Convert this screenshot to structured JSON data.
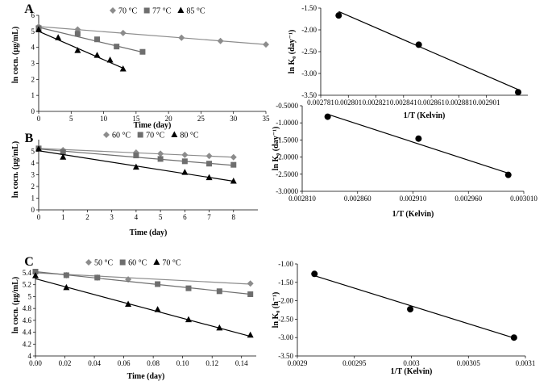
{
  "figure_title": "",
  "legend_units": {
    "A": "°C",
    "B": "°C",
    "C": "°C"
  },
  "chart_data": [
    {
      "id": "A",
      "panel_label": "A",
      "type": "scatter",
      "fit": "linear",
      "xlabel": "Time (day)",
      "ylabel": "ln cocn. (µg/mL)",
      "xlim": [
        0,
        35
      ],
      "ylim": [
        0,
        6
      ],
      "xticks": [
        0,
        5,
        10,
        15,
        20,
        25,
        30,
        35
      ],
      "yticks": [
        0,
        1,
        2,
        3,
        4,
        5,
        6
      ],
      "xtick_labels": [
        "0",
        "5",
        "10",
        "15",
        "20",
        "25",
        "30",
        "35"
      ],
      "ytick_labels": [
        "0",
        "1",
        "2",
        "3",
        "4",
        "5",
        "6"
      ],
      "legend_position": "top",
      "series": [
        {
          "name": "70 °C",
          "marker": "diamond",
          "color": "#8c8c8c",
          "x": [
            0,
            6,
            13,
            22,
            28,
            35
          ],
          "y": [
            5.3,
            5.12,
            4.9,
            4.6,
            4.4,
            4.18
          ],
          "fit_line": [
            [
              0,
              5.3
            ],
            [
              35,
              4.18
            ]
          ]
        },
        {
          "name": "77 °C",
          "marker": "square",
          "color": "#6e6e6e",
          "x": [
            0,
            6,
            9,
            12,
            16
          ],
          "y": [
            5.2,
            4.85,
            4.5,
            4.05,
            3.72
          ],
          "fit_line": [
            [
              0,
              5.25
            ],
            [
              16,
              3.7
            ]
          ]
        },
        {
          "name": "85 °C",
          "marker": "triangle",
          "color": "#000000",
          "x": [
            0,
            3,
            6,
            9,
            11,
            13
          ],
          "y": [
            5.1,
            4.6,
            3.8,
            3.5,
            3.2,
            2.65
          ],
          "fit_line": [
            [
              0,
              5.0
            ],
            [
              13,
              2.7
            ]
          ]
        }
      ]
    },
    {
      "id": "A2",
      "panel_label": "",
      "type": "scatter",
      "fit": "linear",
      "xlabel": "1/T (Kelvin)",
      "ylabel": "ln K₀ (day⁻¹)",
      "xlim": [
        0.002781,
        0.002931
      ],
      "ylim": [
        -3.5,
        -1.5
      ],
      "xticks": [
        0.002781,
        0.002801,
        0.002821,
        0.002841,
        0.002861,
        0.002881,
        0.002901
      ],
      "yticks": [
        -3.5,
        -3.0,
        -2.5,
        -2.0,
        -1.5
      ],
      "xtick_labels": [
        "0.002781",
        "0.002801",
        "0.002821",
        "0.002841",
        "0.002861",
        "0.002881",
        "0.002901"
      ],
      "ytick_labels": [
        "-3.50",
        "-3.00",
        "-2.50",
        "-2.00",
        "-1.50"
      ],
      "series": [
        {
          "name": "",
          "marker": "circle",
          "color": "#000000",
          "x": [
            0.002794,
            0.002852,
            0.002924
          ],
          "y": [
            -1.67,
            -2.34,
            -3.43
          ],
          "fit_line": [
            [
              0.002794,
              -1.58
            ],
            [
              0.002924,
              -3.37
            ]
          ]
        }
      ]
    },
    {
      "id": "B",
      "panel_label": "B",
      "type": "scatter",
      "fit": "linear",
      "xlabel": "Time (day)",
      "ylabel": "ln cocn. (µg/mL)",
      "xlim": [
        0,
        9
      ],
      "ylim": [
        0,
        6
      ],
      "xticks": [
        0,
        1,
        2,
        3,
        4,
        5,
        6,
        7,
        8
      ],
      "yticks": [
        0,
        1,
        2,
        3,
        4,
        5
      ],
      "xtick_labels": [
        "0",
        "1",
        "2",
        "3",
        "4",
        "5",
        "6",
        "7",
        "8"
      ],
      "ytick_labels": [
        "0",
        "1",
        "2",
        "3",
        "4",
        "5"
      ],
      "legend_position": "top",
      "series": [
        {
          "name": "60 °C",
          "marker": "diamond",
          "color": "#8c8c8c",
          "x": [
            0,
            1,
            4,
            5,
            6,
            7,
            8
          ],
          "y": [
            5.25,
            5.1,
            4.9,
            4.8,
            4.7,
            4.6,
            4.5
          ],
          "fit_line": [
            [
              0,
              5.25
            ],
            [
              8,
              4.5
            ]
          ]
        },
        {
          "name": "70 °C",
          "marker": "square",
          "color": "#6e6e6e",
          "x": [
            0,
            1,
            4,
            5,
            6,
            7,
            8
          ],
          "y": [
            5.25,
            4.95,
            4.65,
            4.35,
            4.15,
            3.95,
            3.85
          ],
          "fit_line": [
            [
              0,
              5.2
            ],
            [
              8,
              3.8
            ]
          ]
        },
        {
          "name": "80 °C",
          "marker": "triangle",
          "color": "#000000",
          "x": [
            0,
            1,
            4,
            6,
            7,
            8
          ],
          "y": [
            5.2,
            4.5,
            3.65,
            3.2,
            2.75,
            2.45
          ],
          "fit_line": [
            [
              0,
              5.05
            ],
            [
              8,
              2.45
            ]
          ]
        }
      ]
    },
    {
      "id": "B2",
      "panel_label": "",
      "type": "scatter",
      "fit": "linear",
      "xlabel": "1/T (Kelvin)",
      "ylabel": "ln K₀ (day⁻¹)",
      "xlim": [
        0.00281,
        0.00301
      ],
      "ylim": [
        -3.0,
        -0.5
      ],
      "xticks": [
        0.00281,
        0.00286,
        0.00291,
        0.00296,
        0.00301
      ],
      "yticks": [
        -3.0,
        -2.5,
        -2.0,
        -1.5,
        -1.0,
        -0.5
      ],
      "xtick_labels": [
        "0.002810",
        "0.002860",
        "0.002910",
        "0.002960",
        "0.003010"
      ],
      "ytick_labels": [
        "-3.0000",
        "-2.5000",
        "-2.0000",
        "-1.5000",
        "-1.0000",
        "-0.5000"
      ],
      "series": [
        {
          "name": "",
          "marker": "circle",
          "color": "#000000",
          "x": [
            0.002833,
            0.002915,
            0.002996
          ],
          "y": [
            -0.82,
            -1.46,
            -2.52
          ],
          "fit_line": [
            [
              0.002833,
              -0.75
            ],
            [
              0.002996,
              -2.47
            ]
          ]
        }
      ]
    },
    {
      "id": "C",
      "panel_label": "C",
      "type": "scatter",
      "fit": "linear",
      "xlabel": "Time (day)",
      "ylabel": "ln cocn. (µg/mL)",
      "xlim": [
        0,
        0.15
      ],
      "ylim": [
        4.0,
        5.4
      ],
      "xticks": [
        0,
        0.02,
        0.04,
        0.06,
        0.08,
        0.1,
        0.12,
        0.14
      ],
      "yticks": [
        4.0,
        4.2,
        4.4,
        4.6,
        4.8,
        5.0,
        5.2,
        5.4
      ],
      "xtick_labels": [
        "0.00",
        "0.02",
        "0.04",
        "0.06",
        "0.08",
        "0.10",
        "0.12",
        "0.14"
      ],
      "ytick_labels": [
        "4",
        "4.2",
        "4.4",
        "4.6",
        "4.8",
        "5",
        "5.2",
        "5.4"
      ],
      "legend_position": "top",
      "series": [
        {
          "name": "50 °C",
          "marker": "diamond",
          "color": "#8c8c8c",
          "x": [
            0,
            0.021,
            0.042,
            0.063,
            0.146
          ],
          "y": [
            5.4,
            5.36,
            5.32,
            5.29,
            5.22
          ],
          "fit_line": [
            [
              0,
              5.4
            ],
            [
              0.146,
              5.21
            ]
          ]
        },
        {
          "name": "60 °C",
          "marker": "square",
          "color": "#6e6e6e",
          "x": [
            0,
            0.021,
            0.042,
            0.083,
            0.104,
            0.125,
            0.146
          ],
          "y": [
            5.42,
            5.36,
            5.32,
            5.21,
            5.14,
            5.09,
            5.04
          ],
          "fit_line": [
            [
              0,
              5.42
            ],
            [
              0.146,
              5.04
            ]
          ]
        },
        {
          "name": "70 °C",
          "marker": "triangle",
          "color": "#000000",
          "x": [
            0,
            0.021,
            0.063,
            0.083,
            0.104,
            0.125,
            0.146
          ],
          "y": [
            5.35,
            5.15,
            4.87,
            4.78,
            4.61,
            4.47,
            4.35
          ],
          "fit_line": [
            [
              0,
              5.3
            ],
            [
              0.146,
              4.33
            ]
          ]
        }
      ]
    },
    {
      "id": "C2",
      "panel_label": "",
      "type": "scatter",
      "fit": "linear",
      "xlabel": "1/T (Kelvin)",
      "ylabel": "ln K₀ (h⁻¹)",
      "xlim": [
        0.0029,
        0.0031
      ],
      "ylim": [
        -3.5,
        -1.0
      ],
      "xticks": [
        0.0029,
        0.00295,
        0.003,
        0.00305,
        0.0031
      ],
      "yticks": [
        -3.5,
        -3.0,
        -2.5,
        -2.0,
        -1.5,
        -1.0
      ],
      "xtick_labels": [
        "0.0029",
        "0.00295",
        "0.003",
        "0.00305",
        "0.0031"
      ],
      "ytick_labels": [
        "-3.50",
        "-3.00",
        "-2.50",
        "-2.00",
        "-1.50",
        "-1.00"
      ],
      "series": [
        {
          "name": "",
          "marker": "circle",
          "color": "#000000",
          "x": [
            0.002915,
            0.002999,
            0.00309
          ],
          "y": [
            -1.27,
            -2.23,
            -3.0
          ],
          "fit_line": [
            [
              0.002915,
              -1.32
            ],
            [
              0.00309,
              -3.01
            ]
          ]
        }
      ]
    }
  ]
}
